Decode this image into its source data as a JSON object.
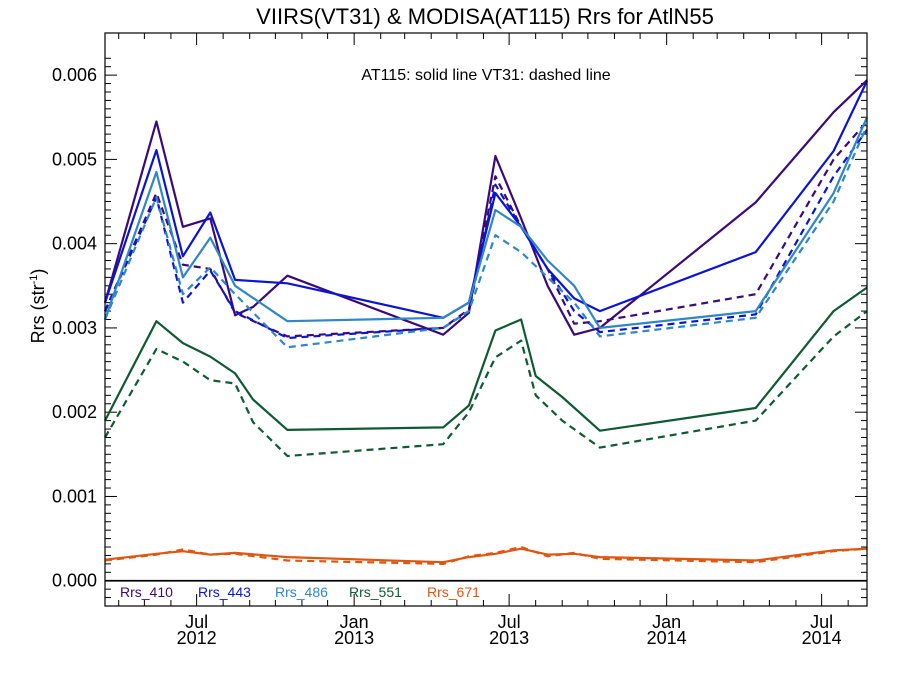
{
  "chart_data": {
    "type": "line",
    "title": "VIIRS(VT31) & MODISA(AT115)  Rrs for AtlN55",
    "ylabel_main": "Rrs (str",
    "ylabel_sup": "-1",
    "ylabel_close": ")",
    "annotation": "AT115: solid line   VT31: dashed line",
    "xlim": [
      "2012-03-16",
      "2014-08-23"
    ],
    "ylim": [
      -0.0003,
      0.0065
    ],
    "yticks": [
      {
        "value": 0.0,
        "label": "0.000"
      },
      {
        "value": 0.001,
        "label": "0.001"
      },
      {
        "value": 0.002,
        "label": "0.002"
      },
      {
        "value": 0.003,
        "label": "0.003"
      },
      {
        "value": 0.004,
        "label": "0.004"
      },
      {
        "value": 0.005,
        "label": "0.005"
      },
      {
        "value": 0.006,
        "label": "0.006"
      }
    ],
    "xticks": [
      {
        "date": "2012-07-01",
        "month": "Jul",
        "year": "2012"
      },
      {
        "date": "2013-01-01",
        "month": "Jan",
        "year": "2013"
      },
      {
        "date": "2013-07-01",
        "month": "Jul",
        "year": "2013"
      },
      {
        "date": "2014-01-01",
        "month": "Jan",
        "year": "2014"
      },
      {
        "date": "2014-07-01",
        "month": "Jul",
        "year": "2014"
      }
    ],
    "zero_line": true,
    "series": [
      {
        "name": "Rrs_410",
        "sensor": "AT115",
        "style": "solid",
        "color": "#3b0a7a",
        "x": [
          "2012-03-16",
          "2012-05-15",
          "2012-06-15",
          "2012-07-17",
          "2012-08-15",
          "2012-09-05",
          "2012-10-15",
          "2013-04-15",
          "2013-05-15",
          "2013-06-15",
          "2013-07-15",
          "2013-08-15",
          "2013-09-15",
          "2013-10-15",
          "2014-04-15",
          "2014-07-15",
          "2014-08-23"
        ],
        "y": [
          0.0033,
          0.00545,
          0.0042,
          0.0043,
          0.00315,
          0.00325,
          0.00362,
          0.00292,
          0.00318,
          0.00504,
          0.0043,
          0.0035,
          0.00292,
          0.003,
          0.00449,
          0.00556,
          0.00594
        ]
      },
      {
        "name": "Rrs_410",
        "sensor": "VT31",
        "style": "dashed",
        "color": "#3b0a7a",
        "x": [
          "2012-03-16",
          "2012-05-15",
          "2012-06-15",
          "2012-07-17",
          "2012-08-15",
          "2012-10-15",
          "2013-04-15",
          "2013-05-15",
          "2013-06-15",
          "2013-07-15",
          "2013-08-15",
          "2013-09-15",
          "2013-10-15",
          "2014-04-15",
          "2014-07-15",
          "2014-08-23"
        ],
        "y": [
          0.0032,
          0.0046,
          0.00375,
          0.0037,
          0.00318,
          0.0029,
          0.003,
          0.00322,
          0.0048,
          0.0042,
          0.0037,
          0.00305,
          0.00308,
          0.0034,
          0.005,
          0.00545
        ]
      },
      {
        "name": "Rrs_443",
        "sensor": "AT115",
        "style": "solid",
        "color": "#0a14d8",
        "x": [
          "2012-03-16",
          "2012-05-15",
          "2012-06-15",
          "2012-07-17",
          "2012-08-15",
          "2012-10-15",
          "2013-04-15",
          "2013-05-15",
          "2013-06-15",
          "2013-07-15",
          "2013-08-15",
          "2013-09-15",
          "2013-10-15",
          "2014-04-15",
          "2014-07-15",
          "2014-08-23"
        ],
        "y": [
          0.0033,
          0.00511,
          0.00385,
          0.00437,
          0.00357,
          0.00353,
          0.00312,
          0.0033,
          0.0046,
          0.0042,
          0.0037,
          0.00335,
          0.0032,
          0.0039,
          0.0051,
          0.00593
        ]
      },
      {
        "name": "Rrs_443",
        "sensor": "VT31",
        "style": "dashed",
        "color": "#0a14d8",
        "x": [
          "2012-03-16",
          "2012-05-15",
          "2012-06-15",
          "2012-07-17",
          "2012-08-15",
          "2012-10-15",
          "2013-04-15",
          "2013-05-15",
          "2013-06-15",
          "2013-07-15",
          "2013-08-15",
          "2013-09-15",
          "2013-10-15",
          "2014-04-15",
          "2014-07-15",
          "2014-08-23"
        ],
        "y": [
          0.0032,
          0.00455,
          0.0033,
          0.00368,
          0.0032,
          0.00288,
          0.003,
          0.0032,
          0.0047,
          0.0042,
          0.0037,
          0.0032,
          0.00295,
          0.00316,
          0.0048,
          0.00535
        ]
      },
      {
        "name": "Rrs_486",
        "sensor": "AT115",
        "style": "solid",
        "color": "#2f86c9",
        "x": [
          "2012-03-16",
          "2012-05-15",
          "2012-06-15",
          "2012-07-17",
          "2012-08-15",
          "2012-10-15",
          "2013-04-15",
          "2013-05-15",
          "2013-06-15",
          "2013-07-15",
          "2013-08-15",
          "2013-09-15",
          "2013-10-15",
          "2014-04-15",
          "2014-07-15",
          "2014-08-23"
        ],
        "y": [
          0.0031,
          0.00485,
          0.0036,
          0.00407,
          0.0035,
          0.00308,
          0.00312,
          0.0033,
          0.0044,
          0.0042,
          0.0038,
          0.0035,
          0.003,
          0.0032,
          0.0046,
          0.0055
        ]
      },
      {
        "name": "Rrs_486",
        "sensor": "VT31",
        "style": "dashed",
        "color": "#2f86c9",
        "x": [
          "2012-03-16",
          "2012-05-15",
          "2012-06-15",
          "2012-07-17",
          "2012-08-15",
          "2012-10-15",
          "2013-04-15",
          "2013-05-15",
          "2013-06-15",
          "2013-07-15",
          "2013-08-15",
          "2013-09-15",
          "2013-10-15",
          "2014-04-15",
          "2014-07-15",
          "2014-08-23"
        ],
        "y": [
          0.0031,
          0.00455,
          0.0034,
          0.00372,
          0.0034,
          0.00277,
          0.003,
          0.0032,
          0.0041,
          0.0039,
          0.0036,
          0.0033,
          0.0029,
          0.00312,
          0.0045,
          0.0054
        ]
      },
      {
        "name": "Rrs_551",
        "sensor": "AT115",
        "style": "solid",
        "color": "#0e5a32",
        "x": [
          "2012-03-16",
          "2012-05-15",
          "2012-06-15",
          "2012-07-17",
          "2012-08-15",
          "2012-09-05",
          "2012-10-15",
          "2013-04-15",
          "2013-05-15",
          "2013-06-15",
          "2013-07-15",
          "2013-08-01",
          "2013-09-01",
          "2013-10-15",
          "2014-04-15",
          "2014-07-15",
          "2014-08-23"
        ],
        "y": [
          0.0019,
          0.00308,
          0.00282,
          0.00266,
          0.00246,
          0.00215,
          0.00179,
          0.00182,
          0.00208,
          0.00297,
          0.0031,
          0.00243,
          0.00218,
          0.00178,
          0.00205,
          0.0032,
          0.00348
        ]
      },
      {
        "name": "Rrs_551",
        "sensor": "VT31",
        "style": "dashed",
        "color": "#0e5a32",
        "x": [
          "2012-03-16",
          "2012-05-15",
          "2012-06-15",
          "2012-07-17",
          "2012-08-15",
          "2012-09-05",
          "2012-10-15",
          "2013-04-15",
          "2013-05-15",
          "2013-06-15",
          "2013-07-15",
          "2013-08-01",
          "2013-09-01",
          "2013-10-15",
          "2014-04-15",
          "2014-07-15",
          "2014-08-23"
        ],
        "y": [
          0.0017,
          0.00275,
          0.0026,
          0.00238,
          0.00234,
          0.00188,
          0.00148,
          0.00162,
          0.002,
          0.00265,
          0.00285,
          0.0022,
          0.0019,
          0.00158,
          0.0019,
          0.0029,
          0.0032
        ]
      },
      {
        "name": "Rrs_671",
        "sensor": "AT115",
        "style": "solid",
        "color": "#e0560e",
        "x": [
          "2012-03-16",
          "2012-05-15",
          "2012-06-15",
          "2012-07-17",
          "2012-08-15",
          "2012-10-15",
          "2013-04-15",
          "2013-05-15",
          "2013-06-15",
          "2013-07-15",
          "2013-08-15",
          "2013-09-15",
          "2013-10-15",
          "2014-04-15",
          "2014-07-15",
          "2014-08-23"
        ],
        "y": [
          0.00025,
          0.00032,
          0.00035,
          0.00031,
          0.00033,
          0.00028,
          0.00022,
          0.00028,
          0.00032,
          0.00038,
          0.00031,
          0.00032,
          0.00028,
          0.00024,
          0.00036,
          0.00038
        ]
      },
      {
        "name": "Rrs_671",
        "sensor": "VT31",
        "style": "dashed",
        "color": "#e0560e",
        "x": [
          "2012-03-16",
          "2012-05-15",
          "2012-06-15",
          "2012-07-17",
          "2012-08-15",
          "2012-10-15",
          "2013-04-15",
          "2013-05-15",
          "2013-06-15",
          "2013-07-15",
          "2013-08-15",
          "2013-09-15",
          "2013-10-15",
          "2014-04-15",
          "2014-07-15",
          "2014-08-23"
        ],
        "y": [
          0.00024,
          0.00031,
          0.00037,
          0.00031,
          0.00032,
          0.00024,
          0.0002,
          0.00029,
          0.00033,
          0.0004,
          0.00029,
          0.00033,
          0.00026,
          0.00022,
          0.00035,
          0.00038
        ]
      }
    ],
    "legend": {
      "placement": "bottom-left",
      "entries": [
        {
          "label": "Rrs_410",
          "color": "#3b0a7a"
        },
        {
          "label": "Rrs_443",
          "color": "#0a14d8"
        },
        {
          "label": "Rrs_486",
          "color": "#2f86c9"
        },
        {
          "label": "Rrs_551",
          "color": "#0e5a32"
        },
        {
          "label": "Rrs_671",
          "color": "#e0560e"
        }
      ]
    }
  }
}
